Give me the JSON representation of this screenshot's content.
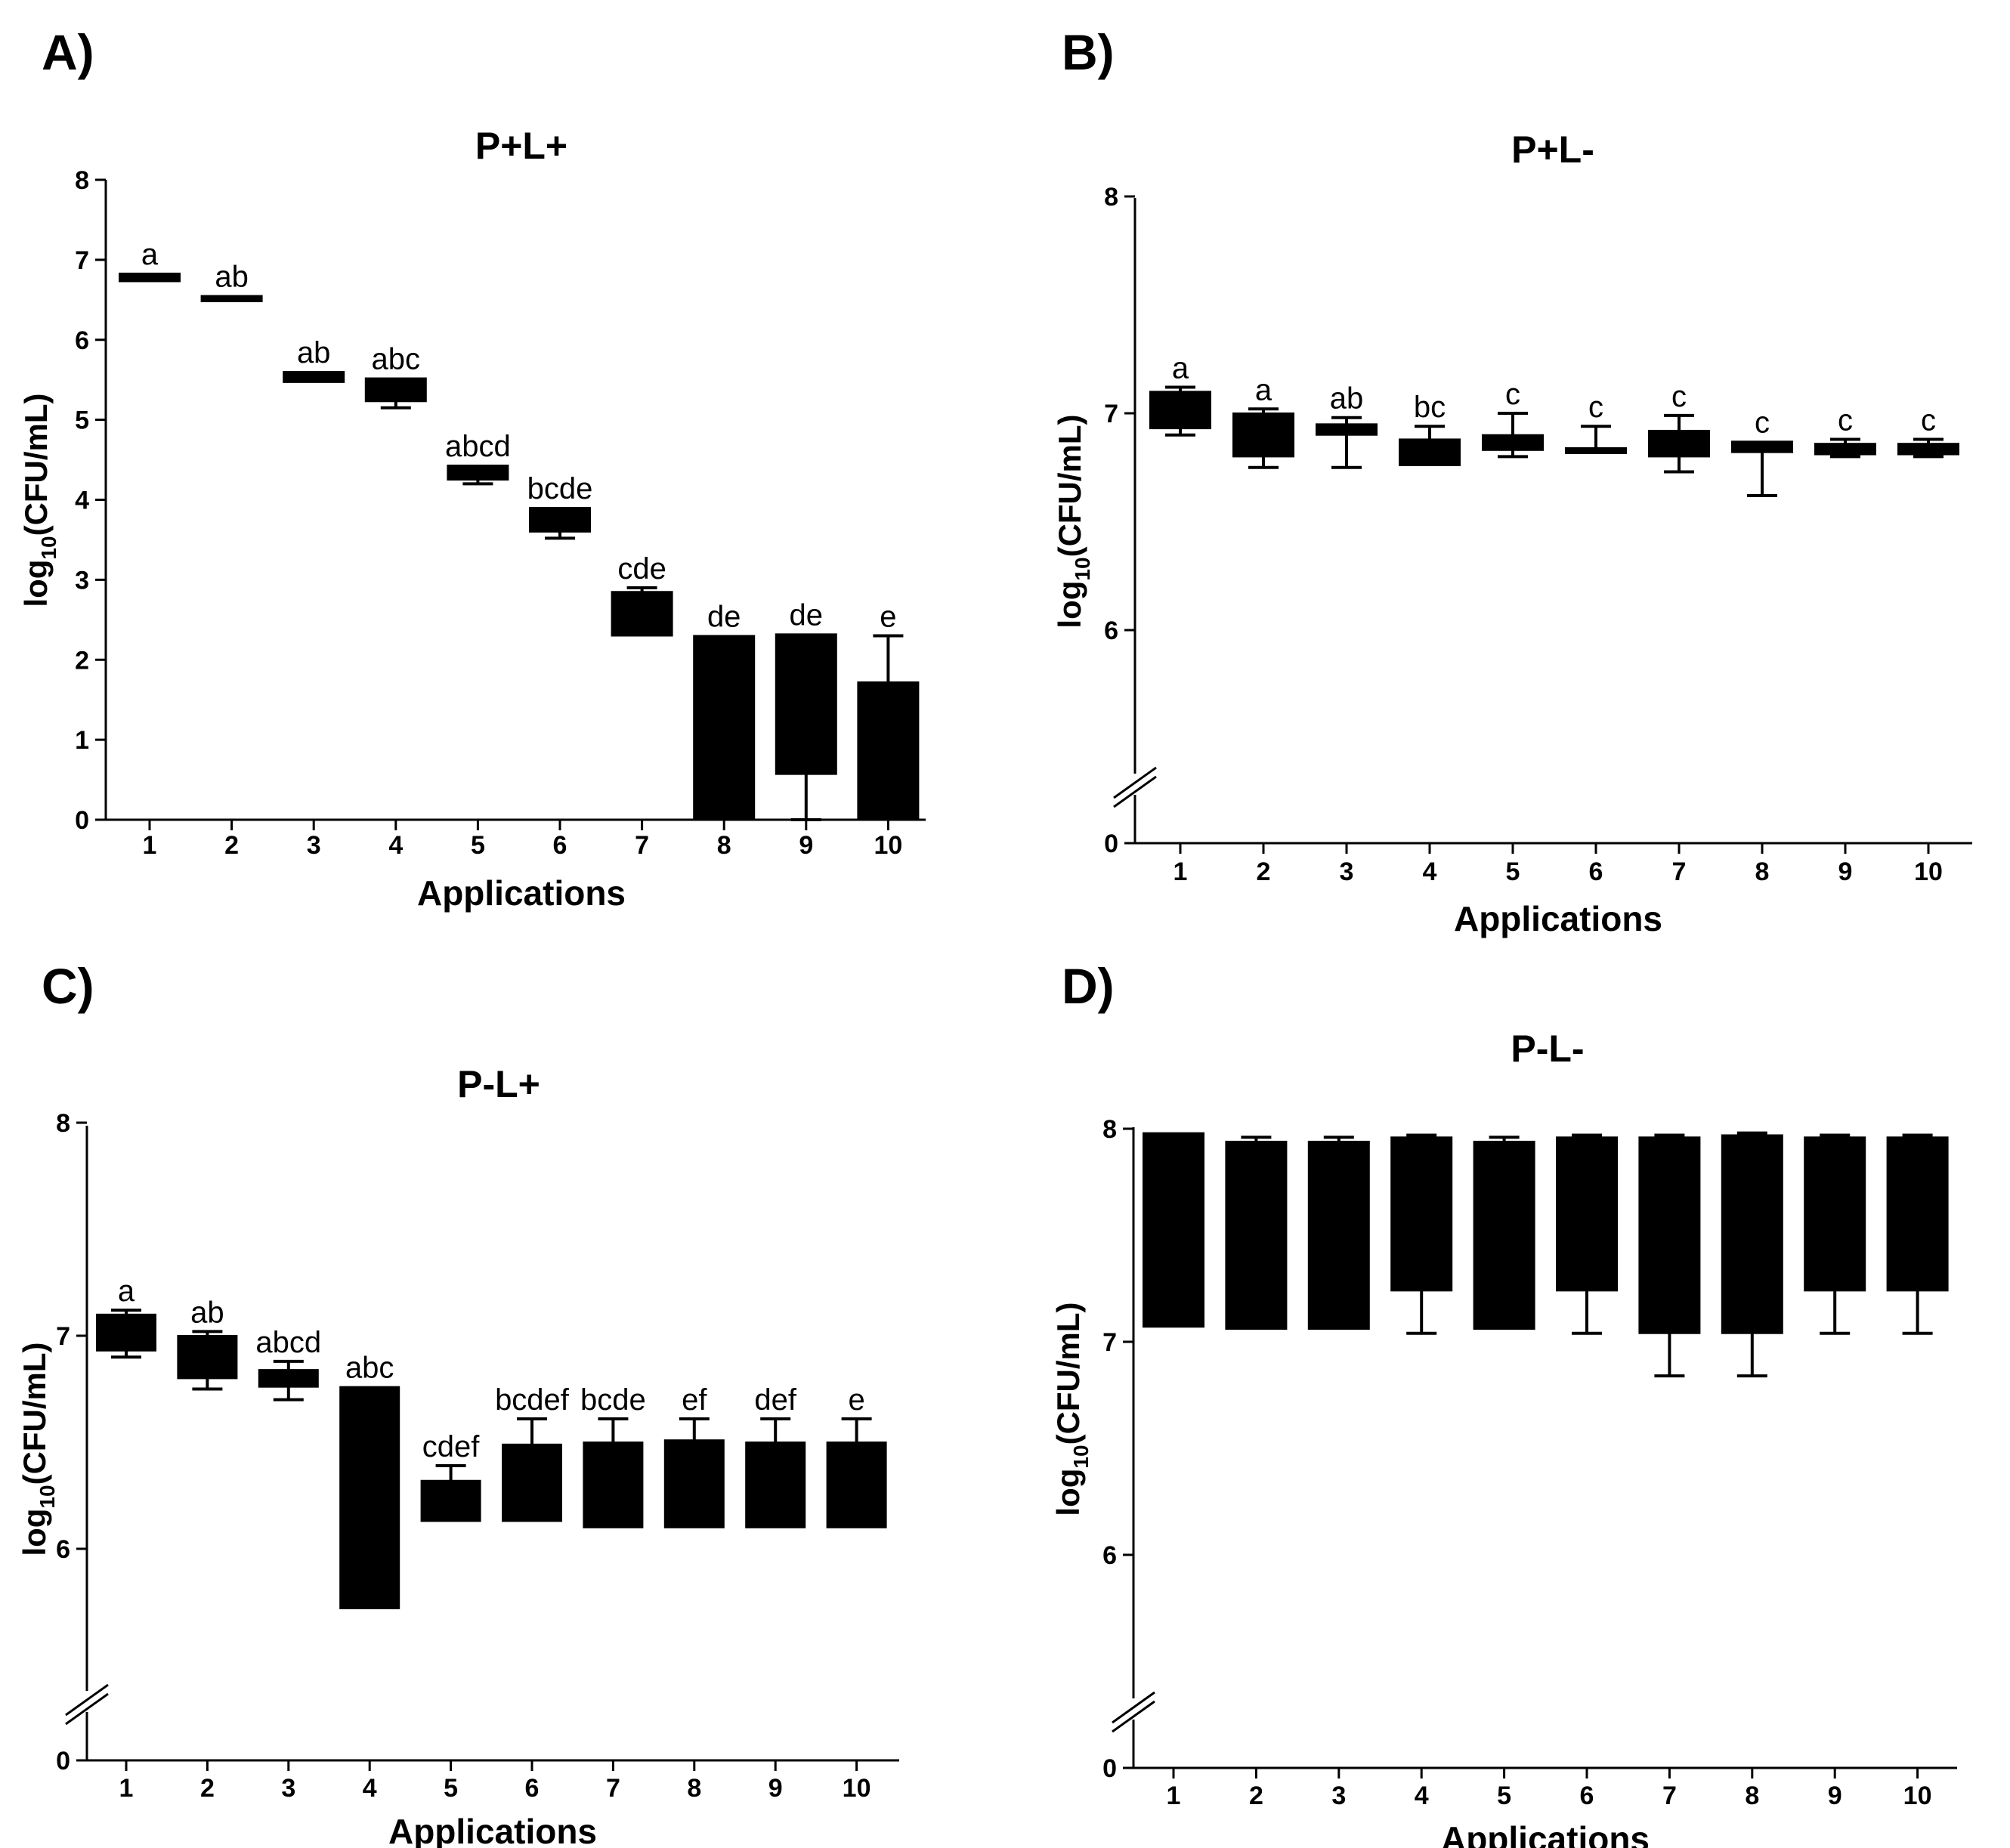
{
  "chart_data": [
    {
      "panel": "A)",
      "type": "box",
      "title": "P+L+",
      "xlabel": "Applications",
      "ylabel_main": "log",
      "ylabel_sub": "10",
      "ylabel_rest": "(CFU/mL)",
      "ylim": [
        0,
        8
      ],
      "axis_break": false,
      "yticks": [
        "0",
        "1",
        "2",
        "3",
        "4",
        "5",
        "6",
        "7",
        "8"
      ],
      "ytick_values": [
        0,
        1,
        2,
        3,
        4,
        5,
        6,
        7,
        8
      ],
      "categories": [
        "1",
        "2",
        "3",
        "4",
        "5",
        "6",
        "7",
        "8",
        "9",
        "10"
      ],
      "boxes": [
        {
          "min": 6.73,
          "q1": 6.73,
          "q3": 6.83,
          "max": 6.83
        },
        {
          "min": 6.48,
          "q1": 6.48,
          "q3": 6.55,
          "max": 6.55
        },
        {
          "min": 5.47,
          "q1": 5.47,
          "q3": 5.6,
          "max": 5.6
        },
        {
          "min": 5.15,
          "q1": 5.23,
          "q3": 5.52,
          "max": 5.52
        },
        {
          "min": 4.2,
          "q1": 4.25,
          "q3": 4.43,
          "max": 4.43
        },
        {
          "min": 3.52,
          "q1": 3.6,
          "q3": 3.9,
          "max": 3.9
        },
        {
          "min": 2.3,
          "q1": 2.3,
          "q3": 2.85,
          "max": 2.9
        },
        {
          "min": 0,
          "q1": 0,
          "q3": 2.3,
          "max": 2.3
        },
        {
          "min": 0,
          "q1": 0.57,
          "q3": 2.32,
          "max": 2.32
        },
        {
          "min": 0,
          "q1": 0,
          "q3": 1.72,
          "max": 2.3
        }
      ],
      "significance": [
        "a",
        "ab",
        "ab",
        "abc",
        "abcd",
        "bcde",
        "cde",
        "de",
        "de",
        "e"
      ]
    },
    {
      "panel": "B)",
      "type": "box",
      "title": "P+L-",
      "xlabel": "Applications",
      "ylabel_main": "log",
      "ylabel_sub": "10",
      "ylabel_rest": "(CFU/mL)",
      "ylim": [
        5.5,
        8
      ],
      "axis_break": true,
      "yticks": [
        "0",
        "6",
        "7",
        "8"
      ],
      "ytick_values": [
        5.5,
        6,
        7,
        8
      ],
      "categories": [
        "1",
        "2",
        "3",
        "4",
        "5",
        "6",
        "7",
        "8",
        "9",
        "10"
      ],
      "boxes": [
        {
          "min": 6.9,
          "q1": 6.93,
          "q3": 7.1,
          "max": 7.12
        },
        {
          "min": 6.75,
          "q1": 6.8,
          "q3": 7.0,
          "max": 7.02
        },
        {
          "min": 6.75,
          "q1": 6.9,
          "q3": 6.95,
          "max": 6.98
        },
        {
          "min": 6.76,
          "q1": 6.76,
          "q3": 6.88,
          "max": 6.94
        },
        {
          "min": 6.8,
          "q1": 6.83,
          "q3": 6.9,
          "max": 7.0
        },
        {
          "min": 6.82,
          "q1": 6.83,
          "q3": 6.84,
          "max": 6.94
        },
        {
          "min": 6.73,
          "q1": 6.8,
          "q3": 6.92,
          "max": 6.99
        },
        {
          "min": 6.62,
          "q1": 6.82,
          "q3": 6.87,
          "max": 6.87
        },
        {
          "min": 6.8,
          "q1": 6.81,
          "q3": 6.86,
          "max": 6.88
        },
        {
          "min": 6.8,
          "q1": 6.81,
          "q3": 6.86,
          "max": 6.88
        }
      ],
      "significance": [
        "a",
        "a",
        "ab",
        "bc",
        "c",
        "c",
        "c",
        "c",
        "c",
        "c"
      ]
    },
    {
      "panel": "C)",
      "type": "box",
      "title": "P-L+",
      "xlabel": "Applications",
      "ylabel_main": "log",
      "ylabel_sub": "10",
      "ylabel_rest": "(CFU/mL)",
      "ylim": [
        5.5,
        8
      ],
      "axis_break": true,
      "yticks": [
        "0",
        "6",
        "7",
        "8"
      ],
      "ytick_values": [
        5.05,
        6,
        7,
        8
      ],
      "categories": [
        "1",
        "2",
        "3",
        "4",
        "5",
        "6",
        "7",
        "8",
        "9",
        "10"
      ],
      "boxes": [
        {
          "min": 6.9,
          "q1": 6.93,
          "q3": 7.1,
          "max": 7.12
        },
        {
          "min": 6.75,
          "q1": 6.8,
          "q3": 7.0,
          "max": 7.02
        },
        {
          "min": 6.7,
          "q1": 6.76,
          "q3": 6.84,
          "max": 6.88
        },
        {
          "min": 5.72,
          "q1": 5.72,
          "q3": 6.76,
          "max": 6.76
        },
        {
          "min": 6.13,
          "q1": 6.13,
          "q3": 6.32,
          "max": 6.39
        },
        {
          "min": 6.13,
          "q1": 6.13,
          "q3": 6.49,
          "max": 6.61
        },
        {
          "min": 6.1,
          "q1": 6.1,
          "q3": 6.5,
          "max": 6.61
        },
        {
          "min": 6.1,
          "q1": 6.1,
          "q3": 6.51,
          "max": 6.61
        },
        {
          "min": 6.1,
          "q1": 6.1,
          "q3": 6.5,
          "max": 6.61
        },
        {
          "min": 6.1,
          "q1": 6.1,
          "q3": 6.5,
          "max": 6.61
        }
      ],
      "significance": [
        "a",
        "ab",
        "abcd",
        "abc",
        "cdef",
        "bcdef",
        "bcde",
        "ef",
        "def",
        "e"
      ]
    },
    {
      "panel": "D)",
      "type": "box",
      "title": "P-L-",
      "xlabel": "Applications",
      "ylabel_main": "log",
      "ylabel_sub": "10",
      "ylabel_rest": "(CFU/mL)",
      "ylim": [
        5.5,
        8
      ],
      "axis_break": true,
      "yticks": [
        "0",
        "6",
        "7",
        "8"
      ],
      "ytick_values": [
        5.01,
        6,
        7,
        8
      ],
      "categories": [
        "1",
        "2",
        "3",
        "4",
        "5",
        "6",
        "7",
        "8",
        "9",
        "10"
      ],
      "boxes": [
        {
          "min": 7.07,
          "q1": 7.07,
          "q3": 7.98,
          "max": 7.98
        },
        {
          "min": 7.06,
          "q1": 7.06,
          "q3": 7.94,
          "max": 7.96
        },
        {
          "min": 7.06,
          "q1": 7.06,
          "q3": 7.94,
          "max": 7.96
        },
        {
          "min": 7.04,
          "q1": 7.24,
          "q3": 7.96,
          "max": 7.97
        },
        {
          "min": 7.06,
          "q1": 7.06,
          "q3": 7.94,
          "max": 7.96
        },
        {
          "min": 7.04,
          "q1": 7.24,
          "q3": 7.96,
          "max": 7.97
        },
        {
          "min": 6.84,
          "q1": 7.04,
          "q3": 7.96,
          "max": 7.97
        },
        {
          "min": 6.84,
          "q1": 7.04,
          "q3": 7.97,
          "max": 7.98
        },
        {
          "min": 7.04,
          "q1": 7.24,
          "q3": 7.96,
          "max": 7.97
        },
        {
          "min": 7.04,
          "q1": 7.24,
          "q3": 7.96,
          "max": 7.97
        }
      ],
      "significance": [
        "",
        "",
        "",
        "",
        "",
        "",
        "",
        "",
        "",
        ""
      ]
    }
  ]
}
